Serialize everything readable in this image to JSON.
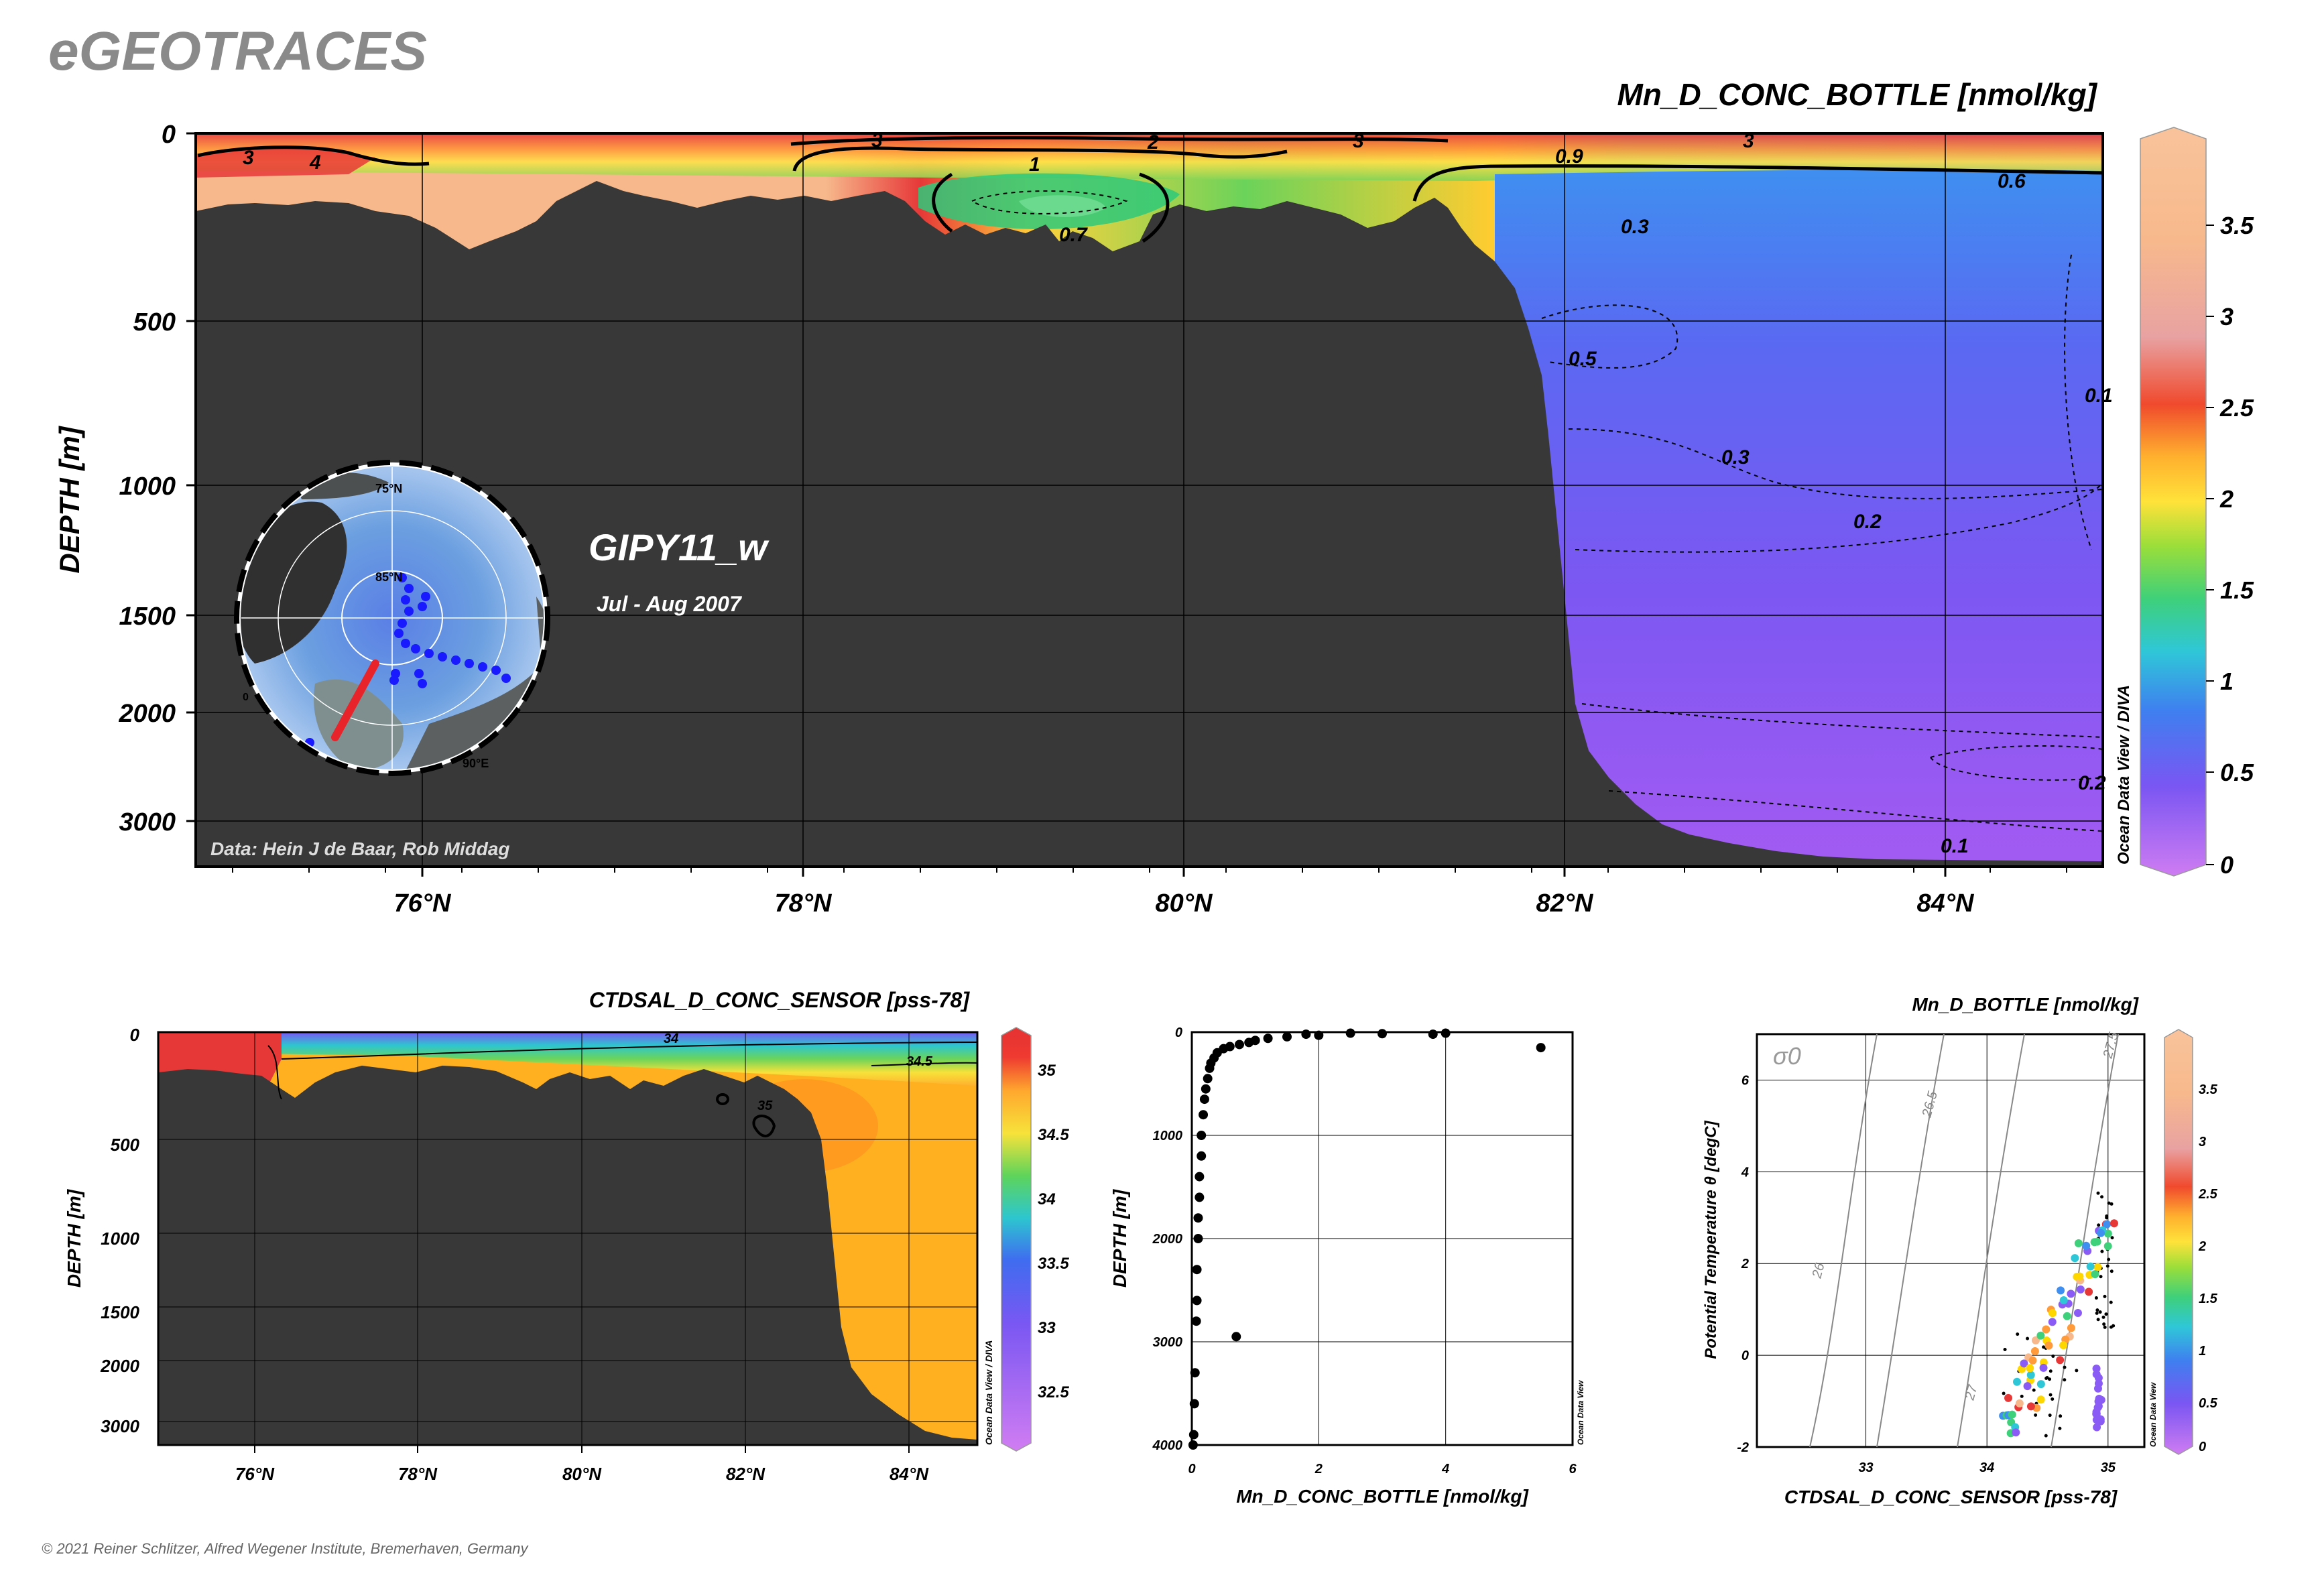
{
  "brand": "eGEOTRACES",
  "copyright": "© 2021 Reiner Schlitzer, Alfred Wegener Institute, Bremerhaven, Germany",
  "chart_data": [
    {
      "type": "heatmap",
      "title": "Mn_D_CONC_BOTTLE [nmol/kg]",
      "ylabel": "DEPTH [m]",
      "x_ticks": [
        "76°N",
        "78°N",
        "80°N",
        "82°N",
        "84°N"
      ],
      "y_ticks": [
        "0",
        "500",
        "1000",
        "1500",
        "2000",
        "3000"
      ],
      "colorbar_ticks": [
        "3.5",
        "3",
        "2.5",
        "2",
        "1.5",
        "1",
        "0.5",
        "0"
      ],
      "colorbar_credit": "Ocean Data View / DIVA",
      "contour_labels": [
        "3",
        "4",
        "3",
        "2",
        "3",
        "3",
        "1",
        "0.9",
        "0.6",
        "0.7",
        "0.3",
        "0.5",
        "0.3",
        "0.2",
        "0.1",
        "0.2",
        "0.1"
      ],
      "section_name": "GIPY11_w",
      "period": "Jul - Aug 2007",
      "data_credit": "Data: Hein J de Baar, Rob Middag",
      "map_labels": [
        "75°N",
        "85°N",
        "90°E",
        "0"
      ],
      "colors": {
        "land": "#383838",
        "high": "#f9b98b",
        "mid": "#ffd700",
        "low": "#8a5cf5"
      }
    },
    {
      "type": "heatmap",
      "title": "CTDSAL_D_CONC_SENSOR [pss-78]",
      "ylabel": "DEPTH [m]",
      "x_ticks": [
        "76°N",
        "78°N",
        "80°N",
        "82°N",
        "84°N"
      ],
      "y_ticks": [
        "0",
        "500",
        "1000",
        "1500",
        "2000",
        "3000"
      ],
      "colorbar_ticks": [
        "35",
        "34.5",
        "34",
        "33.5",
        "33",
        "32.5"
      ],
      "colorbar_credit": "Ocean Data View / DIVA",
      "contour_labels": [
        "34",
        "34.5",
        "35"
      ]
    },
    {
      "type": "scatter",
      "xlabel": "Mn_D_CONC_BOTTLE [nmol/kg]",
      "ylabel": "DEPTH [m]",
      "x_ticks": [
        "0",
        "2",
        "4",
        "6"
      ],
      "y_ticks": [
        "0",
        "1000",
        "2000",
        "3000",
        "4000"
      ],
      "xlim": [
        0,
        6
      ],
      "ylim": [
        0,
        4000
      ],
      "credit": "Ocean Data View",
      "points": [
        [
          5.5,
          150
        ],
        [
          3.8,
          20
        ],
        [
          2.0,
          30
        ],
        [
          1.5,
          45
        ],
        [
          1.2,
          60
        ],
        [
          1.0,
          80
        ],
        [
          0.9,
          100
        ],
        [
          0.75,
          120
        ],
        [
          0.6,
          140
        ],
        [
          0.5,
          160
        ],
        [
          0.4,
          200
        ],
        [
          0.35,
          250
        ],
        [
          0.3,
          300
        ],
        [
          0.28,
          350
        ],
        [
          0.25,
          450
        ],
        [
          0.22,
          550
        ],
        [
          0.2,
          650
        ],
        [
          0.18,
          800
        ],
        [
          0.15,
          1000
        ],
        [
          0.15,
          1200
        ],
        [
          0.12,
          1400
        ],
        [
          0.12,
          1600
        ],
        [
          0.1,
          1800
        ],
        [
          0.1,
          2000
        ],
        [
          0.08,
          2300
        ],
        [
          0.08,
          2600
        ],
        [
          0.07,
          2800
        ],
        [
          0.7,
          2950
        ],
        [
          0.05,
          3300
        ],
        [
          0.04,
          3600
        ],
        [
          0.03,
          3900
        ],
        [
          0.02,
          4000
        ],
        [
          2.5,
          10
        ],
        [
          3.0,
          15
        ],
        [
          4.0,
          10
        ],
        [
          1.8,
          20
        ]
      ]
    },
    {
      "type": "scatter",
      "title": "Mn_D_BOTTLE [nmol/kg]",
      "xlabel": "CTDSAL_D_CONC_SENSOR [pss-78]",
      "ylabel": "Potential Temperature θ [degC]",
      "x_ticks": [
        "33",
        "34",
        "35"
      ],
      "y_ticks": [
        "6",
        "4",
        "2",
        "0",
        "-2"
      ],
      "xlim": [
        32.1,
        35.3
      ],
      "ylim": [
        -2,
        7
      ],
      "sigma_label": "σ0",
      "isopycnal_labels": [
        "26",
        "26.5",
        "27",
        "27.5"
      ],
      "colorbar_ticks": [
        "3.5",
        "3",
        "2.5",
        "2",
        "1.5",
        "1",
        "0.5",
        "0"
      ],
      "credit": "Ocean Data View"
    }
  ]
}
